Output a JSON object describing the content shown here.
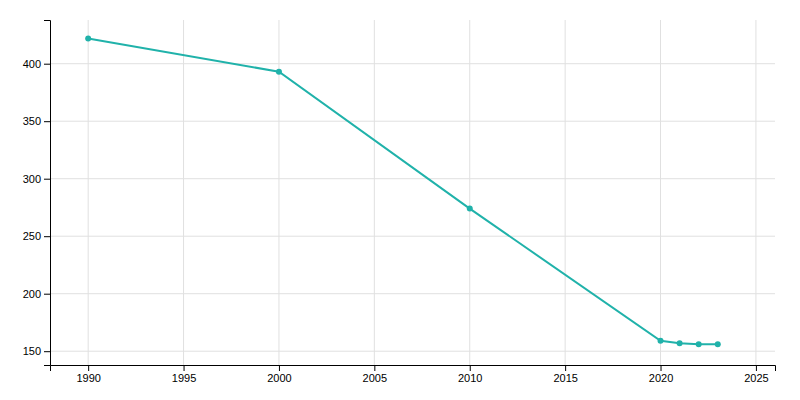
{
  "chart_data": {
    "type": "line",
    "x": [
      1990,
      2000,
      2010,
      2020,
      2021,
      2022,
      2023
    ],
    "values": [
      422,
      393,
      274,
      159,
      157,
      156,
      156
    ],
    "color": "#20B2AA",
    "marker": "circle",
    "xlim": [
      1988,
      2026
    ],
    "ylim": [
      138,
      438
    ],
    "xticks": [
      1990,
      1995,
      2000,
      2005,
      2010,
      2015,
      2020,
      2025
    ],
    "yticks": [
      150,
      200,
      250,
      300,
      350,
      400
    ],
    "grid": true
  }
}
